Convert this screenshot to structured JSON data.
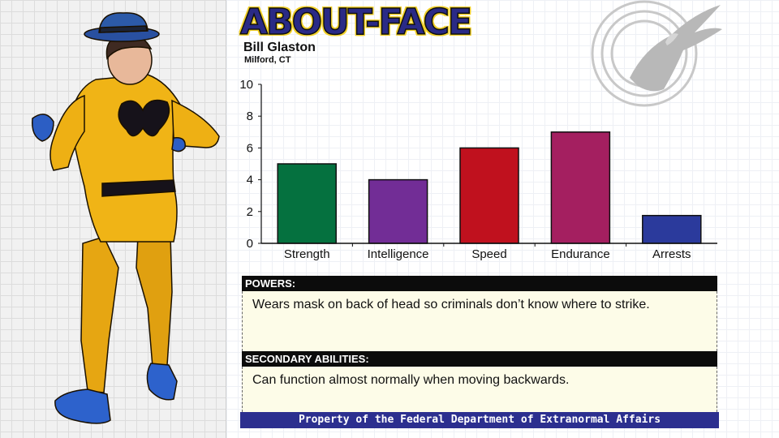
{
  "header": {
    "title": "ABOUT-FACE",
    "name": "Bill Glaston",
    "location": "Milford, CT"
  },
  "colors": {
    "title_fill": "#2a2a86",
    "title_outline": "#f2d028",
    "footer_bg": "#2c2f8f",
    "panel_bg": "#fdfce8"
  },
  "chart_data": {
    "type": "bar",
    "categories": [
      "Strength",
      "Intelligence",
      "Speed",
      "Endurance",
      "Arrests"
    ],
    "values": [
      5,
      4,
      6,
      7,
      1.75
    ],
    "colors": [
      "#05713f",
      "#722d96",
      "#c0111e",
      "#a41f60",
      "#2b3a9c"
    ],
    "ylim": [
      0,
      10
    ],
    "yticks": [
      "0",
      "2",
      "4",
      "6",
      "8",
      "10"
    ],
    "grid": false
  },
  "powers": {
    "heading": "POWERS:",
    "text": "Wears mask on back of head so criminals don’t know where to strike."
  },
  "secondary": {
    "heading": "SECONDARY ABILITIES:",
    "text": "Can function almost normally when moving backwards."
  },
  "footer": {
    "text": "Property of the Federal Department of Extranormal Affairs"
  },
  "images": {
    "hero": "hero-figure-illustration",
    "emblem": "eagle-emblem-icon"
  }
}
